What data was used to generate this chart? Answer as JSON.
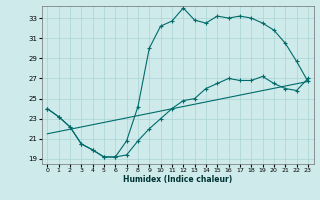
{
  "xlabel": "Humidex (Indice chaleur)",
  "bg_color": "#ceeaea",
  "line_color": "#006b6b",
  "grid_color": "#aad4d4",
  "xlim": [
    -0.5,
    23.5
  ],
  "ylim": [
    18.5,
    34.2
  ],
  "xticks": [
    0,
    1,
    2,
    3,
    4,
    5,
    6,
    7,
    8,
    9,
    10,
    11,
    12,
    13,
    14,
    15,
    16,
    17,
    18,
    19,
    20,
    21,
    22,
    23
  ],
  "yticks": [
    19,
    21,
    23,
    25,
    27,
    29,
    31,
    33
  ],
  "line1_x": [
    0,
    1,
    2,
    3,
    4,
    5,
    6,
    7,
    8,
    9,
    10,
    11,
    12,
    13,
    14,
    15,
    16,
    17,
    18,
    19,
    20,
    21,
    22,
    23
  ],
  "line1_y": [
    24.0,
    23.2,
    22.2,
    20.5,
    19.9,
    19.2,
    19.2,
    20.8,
    24.2,
    30.0,
    32.2,
    32.7,
    34.0,
    32.8,
    32.5,
    33.2,
    33.0,
    33.2,
    33.0,
    32.5,
    31.8,
    30.5,
    28.7,
    26.7
  ],
  "line2_x": [
    0,
    1,
    2,
    3,
    4,
    5,
    6,
    7,
    8,
    9,
    10,
    11,
    12,
    13,
    14,
    15,
    16,
    17,
    18,
    19,
    20,
    21,
    22,
    23
  ],
  "line2_y": [
    24.0,
    23.2,
    22.2,
    20.5,
    19.9,
    19.2,
    19.2,
    19.4,
    20.8,
    22.0,
    23.0,
    24.0,
    24.8,
    25.0,
    26.0,
    26.5,
    27.0,
    26.8,
    26.8,
    27.2,
    26.5,
    26.0,
    25.8,
    27.0
  ],
  "line3_x": [
    0,
    23
  ],
  "line3_y": [
    21.5,
    26.7
  ]
}
